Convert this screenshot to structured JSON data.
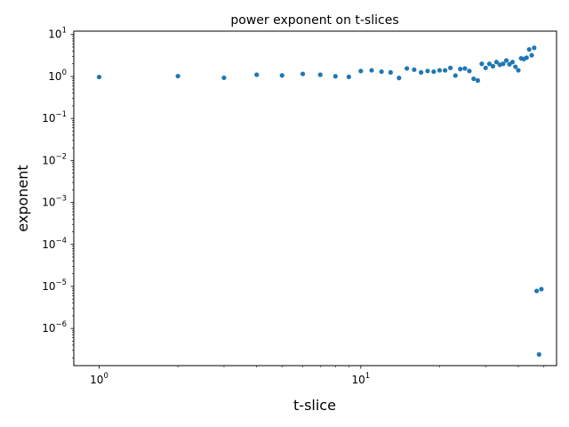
{
  "chart_data": {
    "type": "scatter",
    "title": "power exponent on t-slices",
    "xlabel": "t-slice",
    "ylabel": "exponent",
    "xscale": "log",
    "yscale": "log",
    "xlim": [
      0.8,
      56
    ],
    "ylim": [
      1.3e-07,
      12
    ],
    "grid": false,
    "color": "#1f77b4",
    "x_ticks": [
      {
        "value": 1,
        "base": "10",
        "exp": "0"
      },
      {
        "value": 10,
        "base": "10",
        "exp": "1"
      }
    ],
    "y_ticks": [
      {
        "value": 1e-06,
        "base": "10",
        "exp": "−6"
      },
      {
        "value": 1e-05,
        "base": "10",
        "exp": "−5"
      },
      {
        "value": 0.0001,
        "base": "10",
        "exp": "−4"
      },
      {
        "value": 0.001,
        "base": "10",
        "exp": "−3"
      },
      {
        "value": 0.01,
        "base": "10",
        "exp": "−2"
      },
      {
        "value": 0.1,
        "base": "10",
        "exp": "−1"
      },
      {
        "value": 1,
        "base": "10",
        "exp": "0"
      },
      {
        "value": 10,
        "base": "10",
        "exp": "1"
      }
    ],
    "points": [
      [
        1,
        0.97
      ],
      [
        2,
        1.02
      ],
      [
        3,
        0.93
      ],
      [
        4,
        1.1
      ],
      [
        5,
        1.06
      ],
      [
        6,
        1.15
      ],
      [
        7,
        1.1
      ],
      [
        8,
        1.01
      ],
      [
        9,
        0.98
      ],
      [
        10,
        1.35
      ],
      [
        11,
        1.4
      ],
      [
        12,
        1.3
      ],
      [
        13,
        1.25
      ],
      [
        14,
        0.92
      ],
      [
        15,
        1.55
      ],
      [
        16,
        1.45
      ],
      [
        17,
        1.25
      ],
      [
        18,
        1.35
      ],
      [
        19,
        1.3
      ],
      [
        20,
        1.4
      ],
      [
        21,
        1.4
      ],
      [
        22,
        1.6
      ],
      [
        23,
        1.05
      ],
      [
        24,
        1.5
      ],
      [
        25,
        1.55
      ],
      [
        26,
        1.35
      ],
      [
        27,
        0.88
      ],
      [
        28,
        0.8
      ],
      [
        29,
        2.0
      ],
      [
        30,
        1.6
      ],
      [
        31,
        2.0
      ],
      [
        32,
        1.75
      ],
      [
        33,
        2.2
      ],
      [
        34,
        1.9
      ],
      [
        35,
        2.0
      ],
      [
        36,
        2.4
      ],
      [
        37,
        1.95
      ],
      [
        38,
        2.2
      ],
      [
        39,
        1.7
      ],
      [
        40,
        1.4
      ],
      [
        41,
        2.7
      ],
      [
        42,
        2.6
      ],
      [
        43,
        2.8
      ],
      [
        44,
        4.4
      ],
      [
        45,
        3.2
      ],
      [
        46,
        4.8
      ],
      [
        47,
        7.8e-06
      ],
      [
        48,
        2.4e-07
      ],
      [
        49,
        8.6e-06
      ]
    ]
  }
}
